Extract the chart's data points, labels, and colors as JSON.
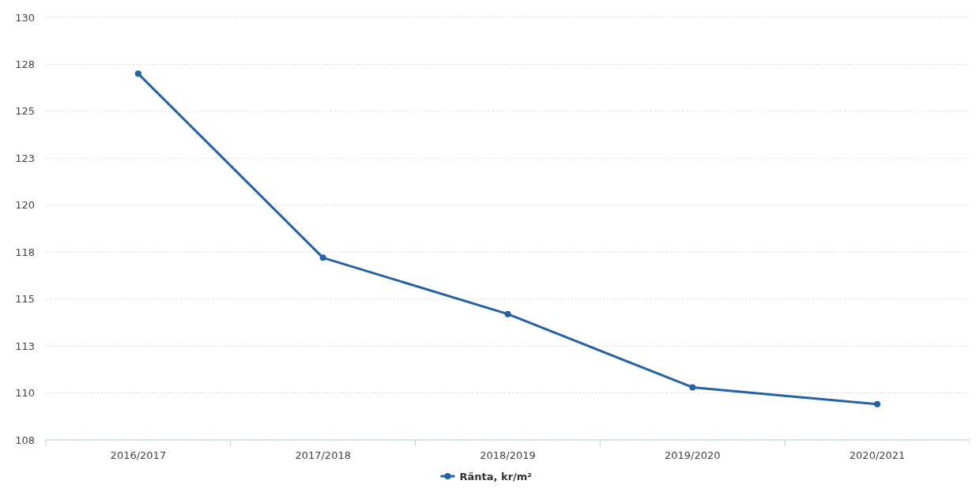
{
  "chart_data": {
    "type": "line",
    "categories": [
      "2016/2017",
      "2017/2018",
      "2018/2019",
      "2019/2020",
      "2020/2021"
    ],
    "series": [
      {
        "name": "Ränta, kr/m²",
        "color": "#2462a8",
        "values": [
          127.0,
          117.2,
          114.2,
          110.3,
          109.4
        ]
      }
    ],
    "ylim": [
      107.5,
      130
    ],
    "yticks": [
      {
        "value": 107.5,
        "label": "108"
      },
      110,
      {
        "value": 112.5,
        "label": "113"
      },
      115,
      {
        "value": 117.5,
        "label": "118"
      },
      120,
      {
        "value": 122.5,
        "label": "123"
      },
      125,
      {
        "value": 127.5,
        "label": "128"
      },
      130
    ],
    "grid": "y",
    "legend": "bottom",
    "marker": "circle",
    "line_style": "solid"
  }
}
